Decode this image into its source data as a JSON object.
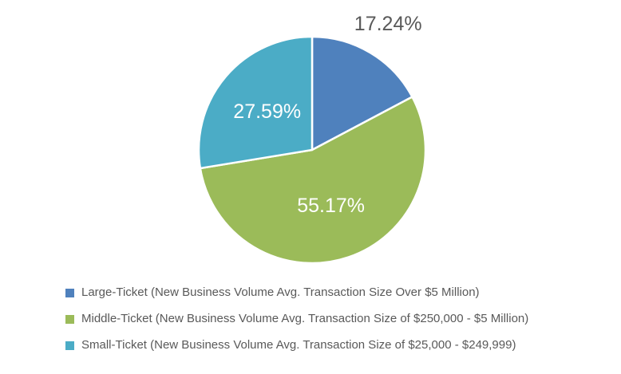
{
  "chart_data": {
    "type": "pie",
    "title": "",
    "labels": [
      "Large-Ticket (New Business Volume Avg. Transaction Size Over $5 Million)",
      "Middle-Ticket (New Business Volume Avg. Transaction Size of $250,000 - $5 Million)",
      "Small-Ticket (New Business Volume Avg. Transaction Size of $25,000 - $249,999)"
    ],
    "values": [
      17.24,
      55.17,
      27.59
    ],
    "data_labels": [
      "17.24%",
      "55.17%",
      "27.59%"
    ],
    "colors": [
      "#4F81BD",
      "#9BBB59",
      "#4BACC6"
    ],
    "label_colors": [
      "#595959",
      "#FFFFFF",
      "#FFFFFF"
    ],
    "label_placement": [
      "outside",
      "inside",
      "inside"
    ],
    "start_angle": 0,
    "direction": "clockwise",
    "legend_position": "bottom-left",
    "slice_border_color": "#FFFFFF"
  }
}
